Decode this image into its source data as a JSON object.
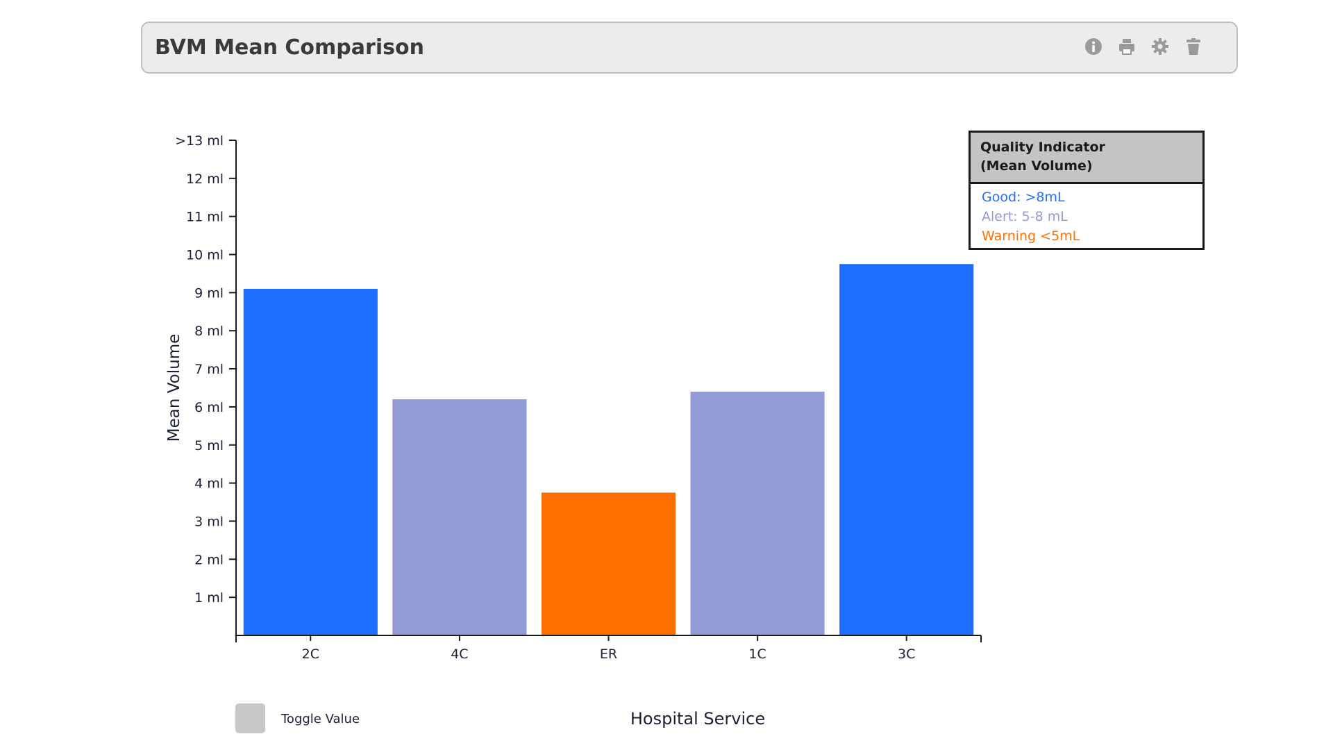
{
  "header": {
    "title": "BVM Mean Comparison",
    "icons": [
      "info-icon",
      "print-icon",
      "gear-icon",
      "trash-icon"
    ]
  },
  "legend_box": {
    "title_line1": "Quality Indicator",
    "title_line2": "(Mean Volume)",
    "good": "Good: >8mL",
    "alert": "Alert: 5-8 mL",
    "warning": "Warning <5mL"
  },
  "toggle": {
    "label": "Toggle Value"
  },
  "colors": {
    "good": "#1f6fff",
    "alert": "#939bd7",
    "warning": "#ff6f00"
  },
  "chart_data": {
    "type": "bar",
    "categories": [
      "2C",
      "4C",
      "ER",
      "1C",
      "3C"
    ],
    "values": [
      9.1,
      6.2,
      3.75,
      6.4,
      9.75
    ],
    "statuses": [
      "good",
      "alert",
      "warning",
      "alert",
      "good"
    ],
    "xlabel": "Hospital Service",
    "ylabel": "Mean Volume",
    "ylim": [
      0,
      13
    ],
    "yticks": [
      {
        "value": 1,
        "label": "1 ml"
      },
      {
        "value": 2,
        "label": "2 ml"
      },
      {
        "value": 3,
        "label": "3 ml"
      },
      {
        "value": 4,
        "label": "4 ml"
      },
      {
        "value": 5,
        "label": "5 ml"
      },
      {
        "value": 6,
        "label": "6 ml"
      },
      {
        "value": 7,
        "label": "7 ml"
      },
      {
        "value": 8,
        "label": "8 ml"
      },
      {
        "value": 9,
        "label": "9 ml"
      },
      {
        "value": 10,
        "label": "10 ml"
      },
      {
        "value": 11,
        "label": "11 ml"
      },
      {
        "value": 12,
        "label": "12 ml"
      },
      {
        "value": 13,
        "label": ">13 ml"
      }
    ],
    "grid": false,
    "legend": "top-right"
  }
}
